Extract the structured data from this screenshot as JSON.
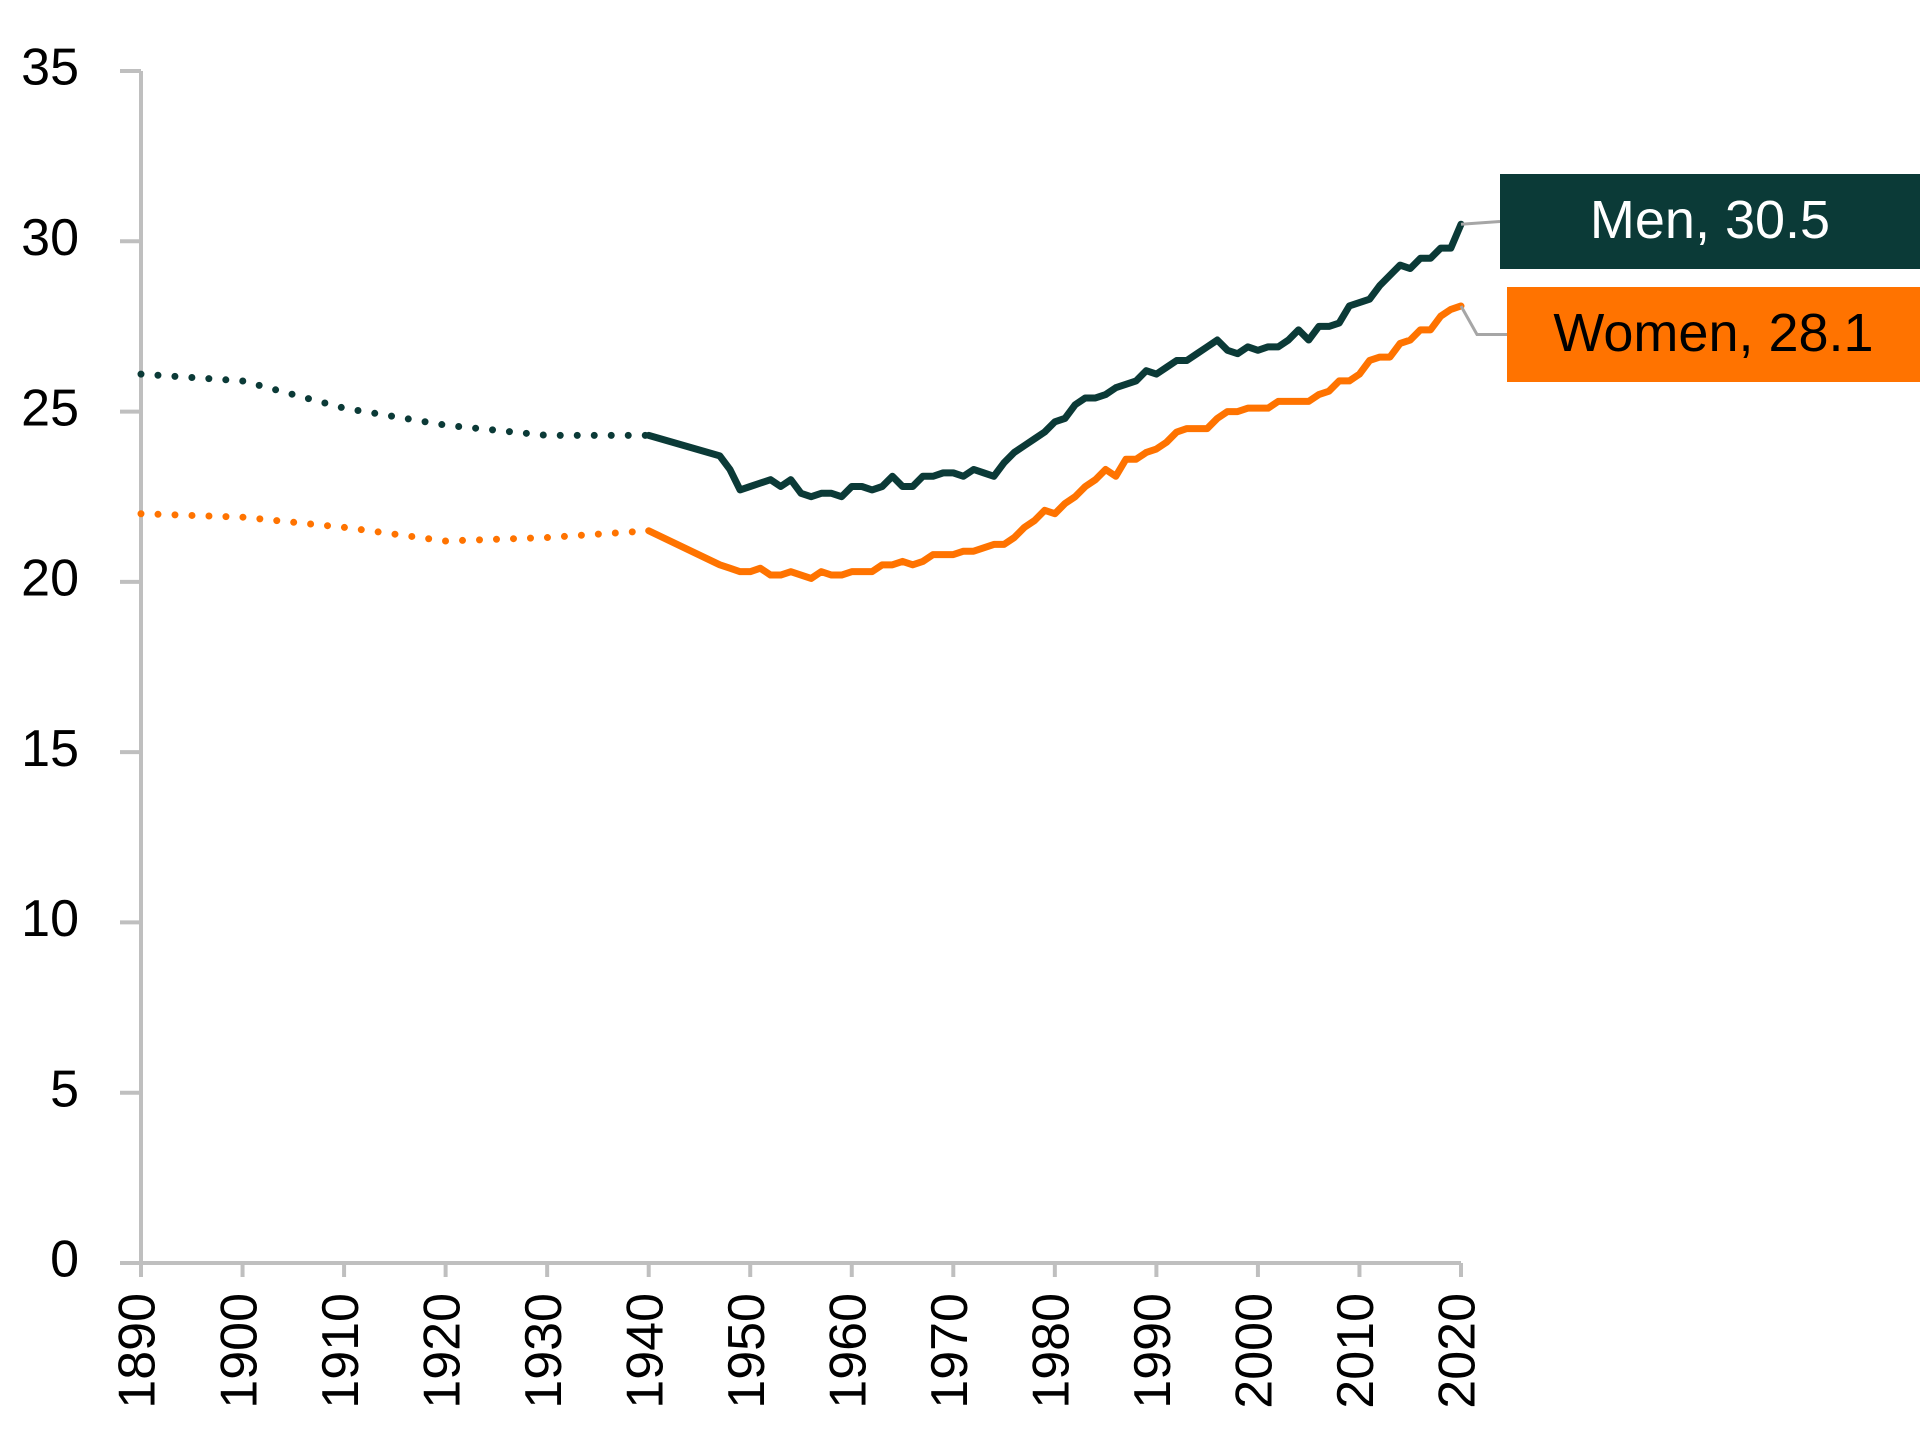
{
  "chart_data": {
    "type": "line",
    "x": [
      1890,
      1900,
      1910,
      1920,
      1930,
      1940,
      1947,
      1948,
      1949,
      1950,
      1951,
      1952,
      1953,
      1954,
      1955,
      1956,
      1957,
      1958,
      1959,
      1960,
      1961,
      1962,
      1963,
      1964,
      1965,
      1966,
      1967,
      1968,
      1969,
      1970,
      1971,
      1972,
      1973,
      1974,
      1975,
      1976,
      1977,
      1978,
      1979,
      1980,
      1981,
      1982,
      1983,
      1984,
      1985,
      1986,
      1987,
      1988,
      1989,
      1990,
      1991,
      1992,
      1993,
      1994,
      1995,
      1996,
      1997,
      1998,
      1999,
      2000,
      2001,
      2002,
      2003,
      2004,
      2005,
      2006,
      2007,
      2008,
      2009,
      2010,
      2011,
      2012,
      2013,
      2014,
      2015,
      2016,
      2017,
      2018,
      2019,
      2020
    ],
    "series": [
      {
        "name": "Men, 30.5",
        "color": "#0b3a37",
        "values": [
          26.1,
          25.9,
          25.1,
          24.6,
          24.3,
          24.3,
          23.7,
          23.3,
          22.7,
          22.8,
          22.9,
          23.0,
          22.8,
          23.0,
          22.6,
          22.5,
          22.6,
          22.6,
          22.5,
          22.8,
          22.8,
          22.7,
          22.8,
          23.1,
          22.8,
          22.8,
          23.1,
          23.1,
          23.2,
          23.2,
          23.1,
          23.3,
          23.2,
          23.1,
          23.5,
          23.8,
          24.0,
          24.2,
          24.4,
          24.7,
          24.8,
          25.2,
          25.4,
          25.4,
          25.5,
          25.7,
          25.8,
          25.9,
          26.2,
          26.1,
          26.3,
          26.5,
          26.5,
          26.7,
          26.9,
          27.1,
          26.8,
          26.7,
          26.9,
          26.8,
          26.9,
          26.9,
          27.1,
          27.4,
          27.1,
          27.5,
          27.5,
          27.6,
          28.1,
          28.2,
          28.3,
          28.7,
          29.0,
          29.3,
          29.2,
          29.5,
          29.5,
          29.8,
          29.8,
          30.5
        ]
      },
      {
        "name": "Women, 28.1",
        "color": "#ff7300",
        "values": [
          22.0,
          21.9,
          21.6,
          21.2,
          21.3,
          21.5,
          20.5,
          20.4,
          20.3,
          20.3,
          20.4,
          20.2,
          20.2,
          20.3,
          20.2,
          20.1,
          20.3,
          20.2,
          20.2,
          20.3,
          20.3,
          20.3,
          20.5,
          20.5,
          20.6,
          20.5,
          20.6,
          20.8,
          20.8,
          20.8,
          20.9,
          20.9,
          21.0,
          21.1,
          21.1,
          21.3,
          21.6,
          21.8,
          22.1,
          22.0,
          22.3,
          22.5,
          22.8,
          23.0,
          23.3,
          23.1,
          23.6,
          23.6,
          23.8,
          23.9,
          24.1,
          24.4,
          24.5,
          24.5,
          24.5,
          24.8,
          25.0,
          25.0,
          25.1,
          25.1,
          25.1,
          25.3,
          25.3,
          25.3,
          25.3,
          25.5,
          25.6,
          25.9,
          25.9,
          26.1,
          26.5,
          26.6,
          26.6,
          27.0,
          27.1,
          27.4,
          27.4,
          27.8,
          28.0,
          28.1
        ]
      }
    ],
    "dotted_range": [
      1890,
      1940
    ],
    "xlim": [
      1890,
      2020
    ],
    "xticks": [
      1890,
      1900,
      1910,
      1920,
      1930,
      1940,
      1950,
      1960,
      1970,
      1980,
      1990,
      2000,
      2010,
      2020
    ],
    "ylim": [
      0,
      35
    ],
    "yticks": [
      0,
      5,
      10,
      15,
      20,
      25,
      30,
      35
    ],
    "grid": false
  }
}
